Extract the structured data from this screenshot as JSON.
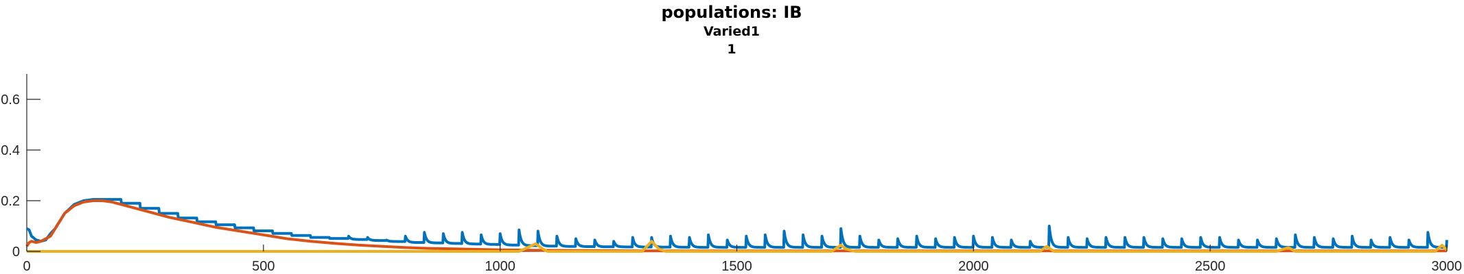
{
  "chart_data": {
    "type": "line",
    "title": "populations: IB",
    "subtitle_lines": [
      "Varied1",
      "1"
    ],
    "xlabel": "",
    "ylabel": "",
    "xlim": [
      0,
      3000
    ],
    "ylim": [
      0,
      0.7
    ],
    "x_ticks": [
      0,
      500,
      1000,
      1500,
      2000,
      2500,
      3000
    ],
    "x_tick_labels": [
      "0",
      "500",
      "1000",
      "1500",
      "2000",
      "2500",
      "3000"
    ],
    "y_ticks": [
      0,
      0.2,
      0.4,
      0.6
    ],
    "y_tick_labels": [
      "0",
      "0.2",
      "0.4",
      "0.6"
    ],
    "grid": false,
    "legend": "none",
    "series": [
      {
        "color": "#0072BD",
        "x": [
          0,
          5,
          10,
          20,
          30,
          40,
          50,
          60,
          70,
          80,
          100,
          120,
          140,
          160,
          180,
          200,
          250,
          300,
          350,
          400,
          450,
          500,
          550,
          600,
          650,
          700,
          750,
          800,
          850,
          900,
          950,
          1000,
          1050,
          1100,
          1200,
          1300,
          1400,
          1500,
          1600,
          1700,
          1800,
          1900,
          2000,
          2100,
          2200,
          2300,
          2400,
          2500,
          2600,
          2700,
          2800,
          2900,
          3000
        ],
        "values": [
          0.09,
          0.085,
          0.06,
          0.045,
          0.04,
          0.045,
          0.07,
          0.09,
          0.12,
          0.15,
          0.185,
          0.2,
          0.205,
          0.205,
          0.2,
          0.19,
          0.165,
          0.14,
          0.12,
          0.105,
          0.09,
          0.075,
          0.065,
          0.055,
          0.05,
          0.045,
          0.04,
          0.035,
          0.033,
          0.03,
          0.028,
          0.025,
          0.022,
          0.02,
          0.018,
          0.017,
          0.016,
          0.016,
          0.016,
          0.016,
          0.016,
          0.016,
          0.016,
          0.016,
          0.016,
          0.016,
          0.016,
          0.016,
          0.016,
          0.016,
          0.016,
          0.016,
          0.016
        ],
        "spike_x": [
          80,
          120,
          160,
          200,
          240,
          280,
          320,
          360,
          400,
          440,
          480,
          520,
          560,
          600,
          640,
          680,
          720,
          760,
          800,
          840,
          880,
          920,
          960,
          1000,
          1040,
          1080,
          1120,
          1160,
          1200,
          1240,
          1280,
          1320,
          1360,
          1400,
          1440,
          1480,
          1520,
          1560,
          1600,
          1640,
          1680,
          1720,
          1760,
          1800,
          1840,
          1880,
          1920,
          1960,
          2000,
          2040,
          2080,
          2120,
          2160,
          2200,
          2240,
          2280,
          2320,
          2360,
          2400,
          2440,
          2480,
          2520,
          2560,
          2600,
          2640,
          2680,
          2720,
          2760,
          2800,
          2840,
          2880,
          2920,
          2960,
          3000
        ],
        "spike_peak": [
          0.06,
          0.045,
          0.04,
          0.035,
          0.03,
          0.03,
          0.045,
          0.035,
          0.04,
          0.035,
          0.03,
          0.045,
          0.05,
          0.04,
          0.05,
          0.06,
          0.055,
          0.045,
          0.06,
          0.075,
          0.07,
          0.075,
          0.065,
          0.07,
          0.085,
          0.08,
          0.06,
          0.05,
          0.045,
          0.04,
          0.055,
          0.055,
          0.06,
          0.055,
          0.065,
          0.045,
          0.06,
          0.065,
          0.08,
          0.065,
          0.06,
          0.09,
          0.06,
          0.045,
          0.05,
          0.06,
          0.05,
          0.055,
          0.06,
          0.055,
          0.045,
          0.04,
          0.1,
          0.055,
          0.05,
          0.055,
          0.055,
          0.055,
          0.05,
          0.05,
          0.055,
          0.055,
          0.045,
          0.045,
          0.05,
          0.065,
          0.055,
          0.05,
          0.06,
          0.045,
          0.055,
          0.045,
          0.075,
          0.045
        ]
      },
      {
        "color": "#D95319",
        "x": [
          0,
          5,
          10,
          20,
          30,
          40,
          50,
          60,
          70,
          80,
          100,
          120,
          140,
          160,
          180,
          200,
          250,
          300,
          350,
          400,
          450,
          500,
          550,
          600,
          650,
          700,
          750,
          800,
          850,
          900,
          950,
          1000,
          1050,
          1100,
          1200,
          1300,
          1400,
          1500,
          1600,
          1700,
          1800,
          1900,
          2000,
          2100,
          2200,
          2300,
          2400,
          2500,
          2600,
          2700,
          2800,
          2900,
          3000
        ],
        "values": [
          0.02,
          0.035,
          0.04,
          0.035,
          0.04,
          0.05,
          0.06,
          0.09,
          0.12,
          0.15,
          0.18,
          0.195,
          0.2,
          0.2,
          0.195,
          0.185,
          0.16,
          0.135,
          0.115,
          0.095,
          0.08,
          0.065,
          0.05,
          0.04,
          0.032,
          0.025,
          0.02,
          0.015,
          0.012,
          0.01,
          0.008,
          0.006,
          0.005,
          0.004,
          0.003,
          0.002,
          0.002,
          0.002,
          0.002,
          0.002,
          0.002,
          0.002,
          0.002,
          0.002,
          0.002,
          0.002,
          0.002,
          0.002,
          0.002,
          0.002,
          0.002,
          0.002,
          0.002
        ]
      },
      {
        "color": "#EDB120",
        "x": [
          0,
          1040,
          1075,
          1090,
          1100,
          1300,
          1320,
          1335,
          1350,
          1700,
          1720,
          1730,
          1750,
          2140,
          2155,
          2170,
          2640,
          2665,
          2680,
          2975,
          2990,
          3000
        ],
        "values": [
          0,
          0,
          0.03,
          0.01,
          0,
          0,
          0.04,
          0.01,
          0,
          0,
          0.025,
          0.01,
          0,
          0,
          0.02,
          0,
          0,
          0.015,
          0,
          0,
          0.025,
          0.005
        ]
      }
    ]
  }
}
